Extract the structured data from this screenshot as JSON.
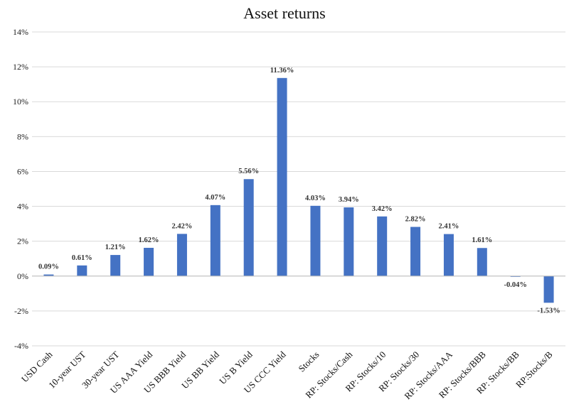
{
  "chart_data": {
    "type": "bar",
    "title": "Asset returns",
    "xlabel": "",
    "ylabel": "",
    "ylim": [
      -4,
      14
    ],
    "ytick_step": 2,
    "ytick_labels": [
      "-4%",
      "-2%",
      "0%",
      "2%",
      "4%",
      "6%",
      "8%",
      "10%",
      "12%",
      "14%"
    ],
    "grid": true,
    "legend": "none",
    "bar_color": "#4472C4",
    "categories": [
      "USD Cash",
      "10-year UST",
      "30-year UST",
      "US AAA Yield",
      "US BBB Yield",
      "US BB Yield",
      "US B Yield",
      "US CCC Yield",
      "Stocks",
      "RP: Stocks/Cash",
      "RP: Stocks/10",
      "RP: Stocks/30",
      "RP: Stocks/AAA",
      "RP: Stocks/BBB",
      "RP: Stocks/BB",
      "RP:Stocks/B"
    ],
    "values": [
      0.09,
      0.61,
      1.21,
      1.62,
      2.42,
      4.07,
      5.56,
      11.36,
      4.03,
      3.94,
      3.42,
      2.82,
      2.41,
      1.61,
      -0.04,
      -1.53
    ],
    "data_labels": [
      "0.09%",
      "0.61%",
      "1.21%",
      "1.62%",
      "2.42%",
      "4.07%",
      "5.56%",
      "11.36%",
      "4.03%",
      "3.94%",
      "3.42%",
      "2.82%",
      "2.41%",
      "1.61%",
      "-0.04%",
      "-1.53%"
    ]
  }
}
